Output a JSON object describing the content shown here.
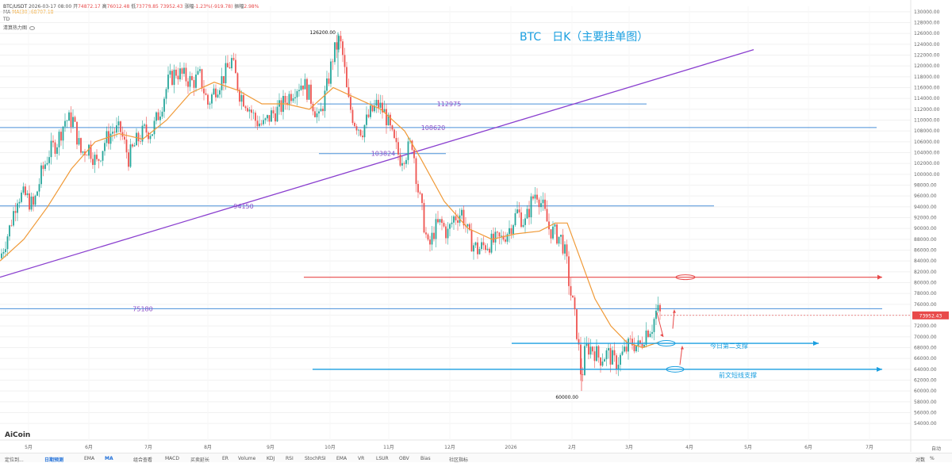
{
  "header": {
    "symbol": "BTC/USDT",
    "datetime": "2026-03-17 08:00",
    "open_label": "开",
    "open": "74872.17",
    "high_label": "高",
    "high": "76012.48",
    "low_label": "低",
    "low": "73778.85",
    "close": "73952.43",
    "change_label": "涨幅",
    "change": "-1.23%(-919.78)",
    "amp_label": "振幅",
    "amp": "2.98%",
    "ma_label": "MA",
    "ma30": "MA(30):68707.18",
    "td_label": "TD",
    "heatmap_label": "清算热力图"
  },
  "chart_data": {
    "type": "candlestick",
    "title": "BTC　日K（主要挂单图）",
    "ylim": [
      53000,
      131000
    ],
    "y_ticks": [
      54000,
      56000,
      58000,
      60000,
      62000,
      64000,
      66000,
      68000,
      70000,
      72000,
      74000,
      76000,
      78000,
      80000,
      82000,
      84000,
      86000,
      88000,
      90000,
      92000,
      94000,
      96000,
      98000,
      100000,
      102000,
      104000,
      106000,
      108000,
      110000,
      112000,
      114000,
      116000,
      118000,
      120000,
      122000,
      124000,
      126000,
      128000,
      130000
    ],
    "x_ticks": [
      "5月",
      "6月",
      "7月",
      "8月",
      "9月",
      "10月",
      "11月",
      "12月",
      "2026",
      "2月",
      "3月",
      "4月",
      "5月",
      "6月",
      "7月"
    ],
    "current_price": "73952.43",
    "price_path": [
      [
        0,
        84500
      ],
      [
        12,
        90000
      ],
      [
        22,
        96000
      ],
      [
        32,
        96000
      ],
      [
        42,
        94000
      ],
      [
        52,
        100000
      ],
      [
        62,
        104000
      ],
      [
        72,
        106000
      ],
      [
        82,
        110000
      ],
      [
        92,
        110000
      ],
      [
        102,
        104000
      ],
      [
        112,
        105000
      ],
      [
        122,
        102000
      ],
      [
        132,
        106000
      ],
      [
        142,
        108000
      ],
      [
        152,
        108000
      ],
      [
        162,
        103000
      ],
      [
        172,
        106000
      ],
      [
        182,
        108000
      ],
      [
        192,
        108000
      ],
      [
        202,
        112000
      ],
      [
        212,
        117000
      ],
      [
        222,
        119000
      ],
      [
        232,
        118000
      ],
      [
        242,
        117000
      ],
      [
        252,
        118000
      ],
      [
        262,
        113000
      ],
      [
        272,
        116000
      ],
      [
        282,
        118000
      ],
      [
        292,
        121000
      ],
      [
        302,
        115000
      ],
      [
        312,
        113000
      ],
      [
        322,
        110000
      ],
      [
        332,
        109000
      ],
      [
        342,
        111000
      ],
      [
        352,
        112000
      ],
      [
        362,
        114000
      ],
      [
        372,
        116000
      ],
      [
        382,
        117000
      ],
      [
        392,
        114000
      ],
      [
        402,
        110000
      ],
      [
        412,
        116000
      ],
      [
        420,
        122000
      ],
      [
        428,
        125000
      ],
      [
        433,
        121000
      ],
      [
        438,
        114000
      ],
      [
        446,
        110000
      ],
      [
        456,
        108000
      ],
      [
        466,
        111000
      ],
      [
        476,
        113000
      ],
      [
        486,
        111000
      ],
      [
        496,
        106000
      ],
      [
        504,
        103000
      ],
      [
        512,
        104000
      ],
      [
        520,
        106000
      ],
      [
        526,
        98000
      ],
      [
        532,
        93000
      ],
      [
        540,
        86000
      ],
      [
        548,
        90000
      ],
      [
        556,
        91000
      ],
      [
        564,
        89000
      ],
      [
        572,
        92000
      ],
      [
        582,
        93000
      ],
      [
        592,
        88000
      ],
      [
        602,
        86000
      ],
      [
        612,
        87000
      ],
      [
        622,
        87500
      ],
      [
        632,
        88000
      ],
      [
        642,
        90000
      ],
      [
        652,
        93000
      ],
      [
        662,
        91000
      ],
      [
        670,
        95000
      ],
      [
        676,
        97000
      ],
      [
        684,
        94000
      ],
      [
        692,
        90000
      ],
      [
        700,
        89000
      ],
      [
        708,
        88000
      ],
      [
        714,
        84000
      ],
      [
        718,
        79000
      ],
      [
        722,
        76000
      ],
      [
        728,
        70000
      ],
      [
        733,
        62000
      ],
      [
        738,
        68000
      ],
      [
        746,
        68000
      ],
      [
        756,
        66000
      ],
      [
        766,
        67000
      ],
      [
        776,
        65000
      ],
      [
        786,
        67000
      ],
      [
        796,
        69000
      ],
      [
        806,
        68000
      ],
      [
        814,
        71000
      ],
      [
        822,
        72000
      ],
      [
        828,
        75000
      ],
      [
        833,
        73952
      ]
    ],
    "ma_path": [
      [
        0,
        84000
      ],
      [
        30,
        88000
      ],
      [
        60,
        94000
      ],
      [
        90,
        101000
      ],
      [
        120,
        106000
      ],
      [
        150,
        107500
      ],
      [
        180,
        106500
      ],
      [
        210,
        110000
      ],
      [
        240,
        115000
      ],
      [
        270,
        117000
      ],
      [
        300,
        115500
      ],
      [
        330,
        113000
      ],
      [
        360,
        113000
      ],
      [
        390,
        112000
      ],
      [
        420,
        116000
      ],
      [
        450,
        114000
      ],
      [
        480,
        112000
      ],
      [
        510,
        108000
      ],
      [
        530,
        103000
      ],
      [
        560,
        95000
      ],
      [
        590,
        90000
      ],
      [
        620,
        88000
      ],
      [
        650,
        89000
      ],
      [
        680,
        89500
      ],
      [
        700,
        91000
      ],
      [
        715,
        91000
      ],
      [
        730,
        85000
      ],
      [
        750,
        77000
      ],
      [
        770,
        72000
      ],
      [
        790,
        69000
      ],
      [
        810,
        68000
      ],
      [
        830,
        69000
      ]
    ],
    "levels": [
      {
        "label": "112975",
        "value": 112975,
        "x1": 400,
        "x2": 815,
        "color": "#4a90d9"
      },
      {
        "label": "108620",
        "value": 108620,
        "x1": 0,
        "x2": 1105,
        "color": "#4a90d9"
      },
      {
        "label": "103824",
        "value": 103824,
        "x1": 402,
        "x2": 562,
        "color": "#4a90d9"
      },
      {
        "label": "94150",
        "value": 94150,
        "x1": 0,
        "x2": 900,
        "color": "#4a90d9"
      },
      {
        "label": "75180",
        "value": 75180,
        "x1": 0,
        "x2": 1112,
        "color": "#4a90d9"
      }
    ],
    "red_level": {
      "value": 81000,
      "x1": 383,
      "x2": 1112
    },
    "support_lines": [
      {
        "label": "今日第二支撑",
        "value": 68800,
        "x1": 645,
        "x2": 1032
      },
      {
        "label": "前文短线支撑",
        "value": 64000,
        "x1": 394,
        "x2": 1112
      }
    ],
    "trendline": {
      "x1": 0,
      "v1": 81000,
      "x2": 950,
      "v2": 123000
    },
    "annotations": [
      {
        "text": "126200.00",
        "value": 126200,
        "x": 426
      },
      {
        "text": "60000.00",
        "value": 60000,
        "x": 732
      }
    ]
  },
  "branding": {
    "logo": "AiCoin"
  },
  "toolbar": {
    "items": [
      "定位到...",
      "日期预测",
      "EMA",
      "MA",
      "组合查看",
      "MACD",
      "买卖延长",
      "ER",
      "Volume",
      "KDJ",
      "RSI",
      "StochRSI",
      "EMA",
      "VR",
      "LSUR",
      "OBV",
      "Bias",
      "社区指标"
    ],
    "right": [
      "对数",
      "%"
    ],
    "auto": "自动"
  },
  "colors": {
    "up": "#26a69a",
    "down": "#ef5350",
    "ma": "#f09a38",
    "level": "#4a90d9",
    "trend": "#8a3fcf",
    "red": "#e84a4a",
    "support": "#1a9fe0",
    "title": "#1a9fe0",
    "price_tag": "#e84a4a"
  }
}
